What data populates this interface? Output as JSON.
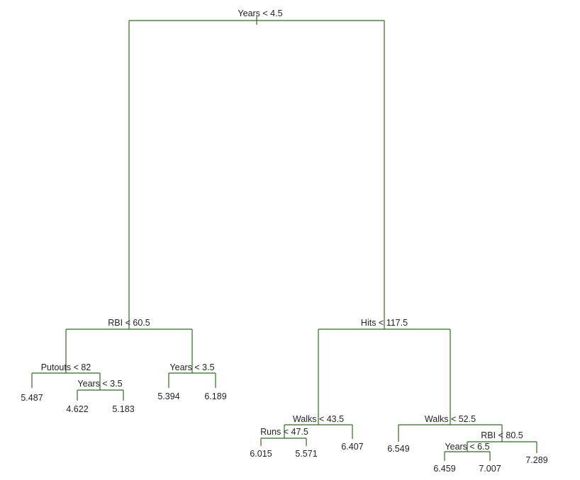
{
  "tree": {
    "line_color": "#2e6b22",
    "splits": {
      "root": "Years < 4.5",
      "rbi_60": "RBI < 60.5",
      "putouts": "Putouts < 82",
      "years_35_a": "Years < 3.5",
      "years_35_b": "Years < 3.5",
      "hits": "Hits < 117.5",
      "walks_435": "Walks < 43.5",
      "runs": "Runs < 47.5",
      "walks_525": "Walks < 52.5",
      "rbi_80": "RBI < 80.5",
      "years_65": "Years < 6.5"
    },
    "leaves": {
      "l1": "5.487",
      "l2": "4.622",
      "l3": "5.183",
      "l4": "5.394",
      "l5": "6.189",
      "l6": "6.015",
      "l7": "5.571",
      "l8": "6.407",
      "l9": "6.549",
      "l10": "6.459",
      "l11": "7.007",
      "l12": "7.289"
    }
  }
}
